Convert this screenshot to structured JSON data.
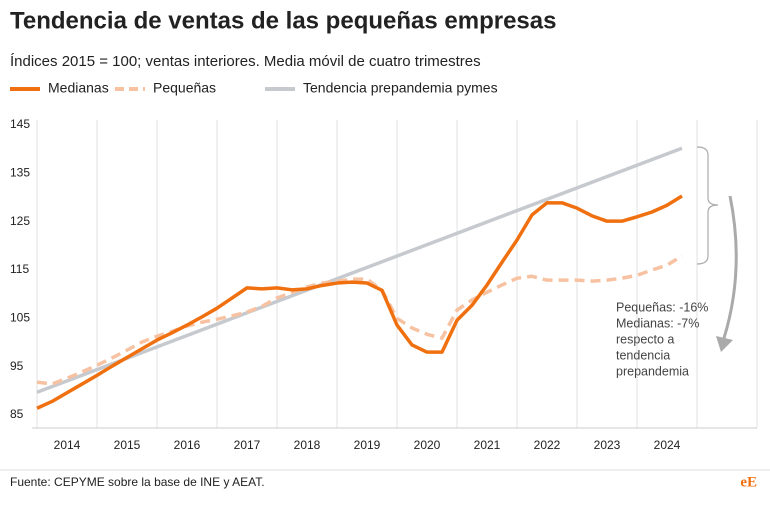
{
  "chart_data": {
    "type": "line",
    "title": "Tendencia de ventas de las pequeñas empresas",
    "subtitle": "Índices 2015 = 100; ventas interiores. Media móvil de cuatro trimestres",
    "source": "Fuente: CEPYME sobre la base de INE y AEAT.",
    "logo": "eE",
    "annotation": [
      "Pequeñas: -16%",
      "Medianas: -7%",
      "respecto a",
      "tendencia",
      "prepandemia"
    ],
    "xlim": [
      2014,
      2026
    ],
    "xticks": [
      {
        "value": 2014.5,
        "label": "2014"
      },
      {
        "value": 2015.5,
        "label": "2015"
      },
      {
        "value": 2016.5,
        "label": "2016"
      },
      {
        "value": 2017.5,
        "label": "2017"
      },
      {
        "value": 2018.5,
        "label": "2018"
      },
      {
        "value": 2019.5,
        "label": "2019"
      },
      {
        "value": 2020.5,
        "label": "2020"
      },
      {
        "value": 2021.5,
        "label": "2021"
      },
      {
        "value": 2022.5,
        "label": "2022"
      },
      {
        "value": 2023.5,
        "label": "2023"
      },
      {
        "value": 2024.5,
        "label": "2024"
      }
    ],
    "x_gridlines": [
      2014,
      2015,
      2016,
      2017,
      2018,
      2019,
      2020,
      2021,
      2022,
      2023,
      2024,
      2025,
      2026
    ],
    "ylim": [
      85,
      145
    ],
    "yticks": [
      85,
      95,
      105,
      115,
      125,
      135,
      145
    ],
    "series": [
      {
        "name": "Medianas",
        "color": "#f07010",
        "dash": false,
        "x": [
          2014,
          2014.25,
          2014.5,
          2014.75,
          2015,
          2015.25,
          2015.5,
          2015.75,
          2016,
          2016.25,
          2016.5,
          2016.75,
          2017,
          2017.25,
          2017.5,
          2017.75,
          2018,
          2018.25,
          2018.5,
          2018.75,
          2019,
          2019.25,
          2019.5,
          2019.75,
          2020,
          2020.25,
          2020.5,
          2020.75,
          2021,
          2021.25,
          2021.5,
          2021.75,
          2022,
          2022.25,
          2022.5,
          2022.75,
          2023,
          2023.25,
          2023.5,
          2023.75,
          2024,
          2024.25,
          2024.5,
          2024.75
        ],
        "values": [
          86.4,
          87.8,
          89.6,
          91.4,
          93.2,
          95.1,
          96.9,
          98.7,
          100.5,
          102,
          103.6,
          105.3,
          107.1,
          109.2,
          111.3,
          111.1,
          111.3,
          110.9,
          111.1,
          111.8,
          112.3,
          112.5,
          112.3,
          110.8,
          103.6,
          99.5,
          98,
          98,
          104.6,
          107.7,
          111.9,
          116.6,
          121.2,
          126.4,
          128.9,
          128.9,
          127.8,
          126.2,
          125.1,
          125.1,
          126,
          127,
          128.4,
          130.3
        ]
      },
      {
        "name": "Pequeñas",
        "color": "#f7c2a2",
        "dash": true,
        "x": [
          2014,
          2014.25,
          2014.5,
          2014.75,
          2015,
          2015.25,
          2015.5,
          2015.75,
          2016,
          2016.25,
          2016.5,
          2016.75,
          2017,
          2017.25,
          2017.5,
          2017.75,
          2018,
          2018.25,
          2018.5,
          2018.75,
          2019,
          2019.25,
          2019.5,
          2019.75,
          2020,
          2020.25,
          2020.5,
          2020.75,
          2021,
          2021.25,
          2021.5,
          2021.75,
          2022,
          2022.25,
          2022.5,
          2022.75,
          2023,
          2023.25,
          2023.5,
          2023.75,
          2024,
          2024.25,
          2024.5,
          2024.75
        ],
        "values": [
          91.8,
          91.4,
          92.6,
          93.9,
          95.3,
          96.8,
          98.4,
          100.1,
          101.3,
          102.3,
          103.4,
          104.2,
          104.8,
          105.5,
          106.3,
          107.5,
          109.2,
          110.4,
          111.5,
          112.3,
          112.7,
          113.1,
          113.1,
          110.8,
          105,
          103,
          101.7,
          100.9,
          106.7,
          108.8,
          110.4,
          111.9,
          113.3,
          113.7,
          112.9,
          112.9,
          112.9,
          112.7,
          112.9,
          113.3,
          113.9,
          115,
          116,
          117.9
        ]
      },
      {
        "name": "Tendencia prepandemia pymes",
        "color": "#c6cacf",
        "dash": false,
        "x": [
          2014,
          2024.75
        ],
        "values": [
          89.7,
          140.2
        ]
      }
    ]
  }
}
